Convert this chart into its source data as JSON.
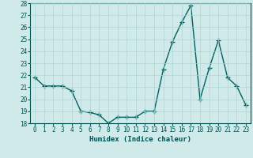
{
  "x": [
    0,
    1,
    2,
    3,
    4,
    5,
    6,
    7,
    8,
    9,
    10,
    11,
    12,
    13,
    14,
    15,
    16,
    17,
    18,
    19,
    20,
    21,
    22,
    23
  ],
  "y": [
    21.8,
    21.1,
    21.1,
    21.1,
    20.7,
    19.0,
    18.9,
    18.7,
    18.0,
    18.5,
    18.5,
    18.5,
    19.0,
    19.0,
    22.5,
    24.8,
    26.4,
    27.8,
    20.0,
    22.6,
    24.9,
    21.8,
    21.1,
    19.5
  ],
  "line_color": "#006060",
  "marker": "+",
  "marker_size": 4,
  "bg_color": "#d0eaea",
  "grid_color": "#b0d4d4",
  "xlabel": "Humidex (Indice chaleur)",
  "ylim": [
    18,
    28
  ],
  "xlim": [
    -0.5,
    23.5
  ],
  "yticks": [
    18,
    19,
    20,
    21,
    22,
    23,
    24,
    25,
    26,
    27,
    28
  ],
  "xticks": [
    0,
    1,
    2,
    3,
    4,
    5,
    6,
    7,
    8,
    9,
    10,
    11,
    12,
    13,
    14,
    15,
    16,
    17,
    18,
    19,
    20,
    21,
    22,
    23
  ],
  "label_color": "#005050",
  "tick_color": "#005050",
  "tick_fontsize": 5.5,
  "xlabel_fontsize": 6.5,
  "linewidth": 1.0,
  "marker_color": "#006060"
}
